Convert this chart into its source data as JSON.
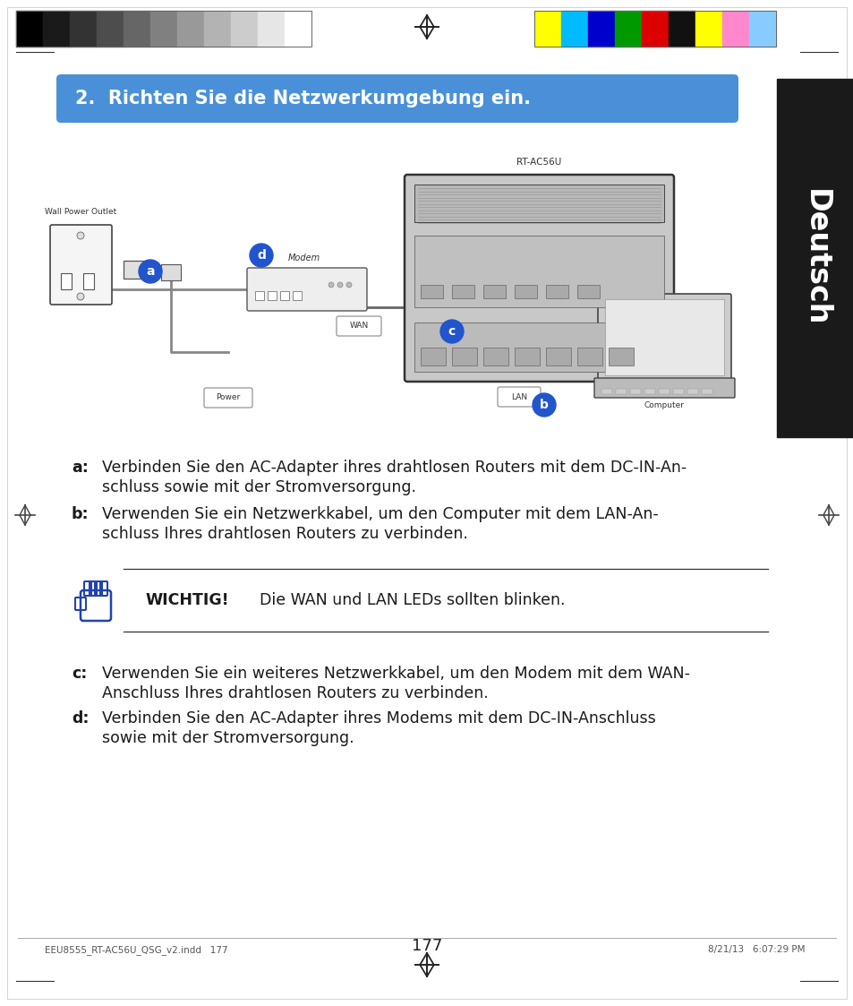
{
  "page_bg": "#ffffff",
  "title_box_color": "#4a90d9",
  "title_text": "2.  Richten Sie die Netzwerkumgebung ein.",
  "title_text_color": "#ffffff",
  "side_bar_color": "#1a1a1a",
  "side_bar_text": "Deutsch",
  "side_bar_text_color": "#ffffff",
  "body_text_color": "#1a1a1a",
  "label_a_bold": "a:",
  "text_a_line1": "Verbinden Sie den AC-Adapter ihres drahtlosen Routers mit dem DC-IN-An-",
  "text_a_line2": "schluss sowie mit der Stromversorgung.",
  "label_b_bold": "b:",
  "text_b_line1": "Verwenden Sie ein Netzwerkkabel, um den Computer mit dem LAN-An-",
  "text_b_line2": "schluss Ihres drahtlosen Routers zu verbinden.",
  "wichtig_label": "WICHTIG!",
  "wichtig_text": "Die WAN und LAN LEDs sollten blinken.",
  "label_c_bold": "c:",
  "text_c_line1": "Verwenden Sie ein weiteres Netzwerkkabel, um den Modem mit dem WAN-",
  "text_c_line2": "Anschluss Ihres drahtlosen Routers zu verbinden.",
  "label_d_bold": "d:",
  "text_d_line1": "Verbinden Sie den AC-Adapter ihres Modems mit dem DC-IN-Anschluss",
  "text_d_line2": "sowie mit der Stromversorgung.",
  "footer_text": "EEU8555_RT-AC56U_QSG_v2.indd   177",
  "footer_page": "177",
  "footer_right": "8/21/13   6:07:29 PM",
  "crosshair_color": "#333333",
  "hand_icon_color": "#2244aa",
  "gray_bars": [
    "#000000",
    "#1a1a1a",
    "#333333",
    "#4d4d4d",
    "#666666",
    "#808080",
    "#999999",
    "#b3b3b3",
    "#cccccc",
    "#e6e6e6",
    "#ffffff"
  ],
  "color_bars": [
    "#ffff00",
    "#00bbff",
    "#0000cc",
    "#009900",
    "#dd0000",
    "#111111",
    "#ffff00",
    "#ff88cc",
    "#88ccff"
  ]
}
